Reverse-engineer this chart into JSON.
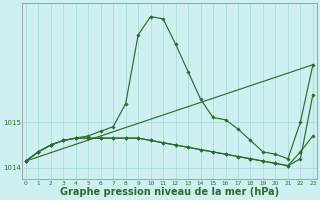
{
  "background_color": "#cff0f0",
  "grid_color": "#aadddd",
  "line_color": "#2d6b2d",
  "xlabel": "Graphe pression niveau de la mer (hPa)",
  "xlabel_fontsize": 7,
  "ylim": [
    1013.75,
    1017.6
  ],
  "yticks": [
    1014,
    1015
  ],
  "xlim": [
    -0.3,
    23.3
  ],
  "series": [
    {
      "x": [
        0,
        1,
        2,
        3,
        4,
        5,
        6,
        7,
        8,
        9,
        10,
        11,
        12,
        13,
        14,
        15,
        16,
        17,
        18,
        19,
        20,
        21,
        22,
        23
      ],
      "y": [
        1014.15,
        1014.35,
        1014.5,
        1014.6,
        1014.65,
        1014.7,
        1014.8,
        1014.9,
        1015.4,
        1016.9,
        1017.3,
        1017.25,
        1016.7,
        1016.1,
        1015.5,
        1015.1,
        1015.05,
        1014.85,
        1014.6,
        1014.35,
        1014.3,
        1014.2,
        1015.0,
        1016.25
      ]
    },
    {
      "x": [
        0,
        23
      ],
      "y": [
        1014.15,
        1016.25
      ]
    },
    {
      "x": [
        0,
        1,
        2,
        3,
        4,
        5,
        6,
        7,
        8,
        9,
        10,
        11,
        12,
        13,
        14,
        15,
        16,
        17,
        18,
        19,
        20,
        21,
        22,
        23
      ],
      "y": [
        1014.15,
        1014.35,
        1014.5,
        1014.6,
        1014.65,
        1014.65,
        1014.65,
        1014.65,
        1014.65,
        1014.65,
        1014.6,
        1014.55,
        1014.5,
        1014.45,
        1014.4,
        1014.35,
        1014.3,
        1014.25,
        1014.2,
        1014.15,
        1014.1,
        1014.05,
        1014.35,
        1014.7
      ]
    },
    {
      "x": [
        0,
        1,
        2,
        3,
        4,
        5,
        6,
        7,
        8,
        9,
        10,
        11,
        12,
        13,
        14,
        15,
        16,
        17,
        18,
        19,
        20,
        21,
        22,
        23
      ],
      "y": [
        1014.15,
        1014.35,
        1014.5,
        1014.6,
        1014.65,
        1014.65,
        1014.65,
        1014.65,
        1014.65,
        1014.65,
        1014.6,
        1014.55,
        1014.5,
        1014.45,
        1014.4,
        1014.35,
        1014.3,
        1014.25,
        1014.2,
        1014.15,
        1014.1,
        1014.05,
        1014.2,
        1015.6
      ]
    }
  ],
  "marker_series": [
    0,
    2,
    3
  ],
  "line_only_series": [
    1
  ]
}
